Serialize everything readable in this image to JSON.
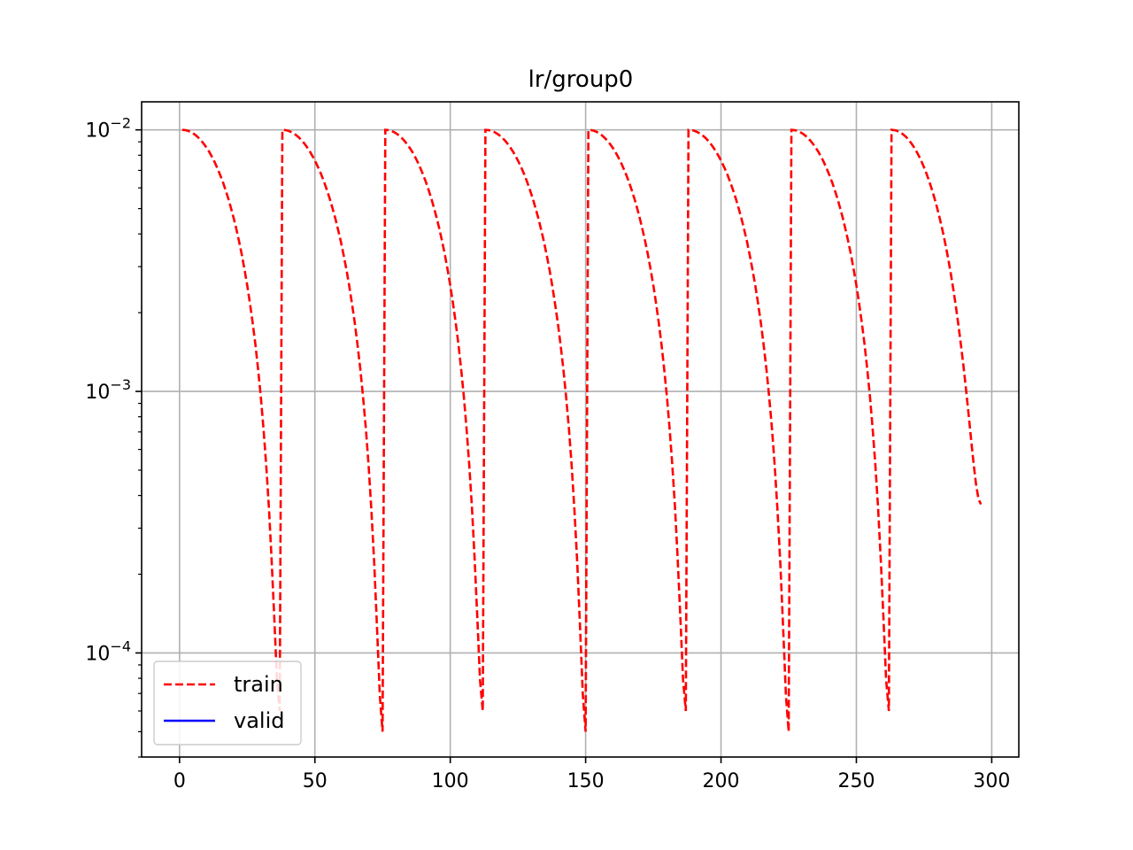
{
  "chart_data": {
    "type": "line",
    "title": "lr/group0",
    "xlabel": "",
    "ylabel": "",
    "yscale": "log",
    "xlim": [
      -14,
      310
    ],
    "ylim": [
      4e-05,
      0.0128
    ],
    "x_ticks": [
      0,
      50,
      100,
      150,
      200,
      250,
      300
    ],
    "x_tick_labels": [
      "0",
      "50",
      "100",
      "150",
      "200",
      "250",
      "300"
    ],
    "y_ticks": [
      0.0001,
      0.001,
      0.01
    ],
    "y_tick_labels": [
      {
        "base": "10",
        "exp": "−4"
      },
      {
        "base": "10",
        "exp": "−3"
      },
      {
        "base": "10",
        "exp": "−2"
      }
    ],
    "grid": true,
    "legend": {
      "placement": "lower-left",
      "entries": [
        "train",
        "valid"
      ]
    },
    "series": [
      {
        "name": "train",
        "color": "#ff0000",
        "style": "dashed",
        "segments": [
          {
            "x_start": 1,
            "x_end": 37,
            "y_start": 0.01,
            "y_end": 6e-05
          },
          {
            "x_start": 38,
            "x_end": 75,
            "y_start": 0.01,
            "y_end": 5e-05
          },
          {
            "x_start": 76,
            "x_end": 112,
            "y_start": 0.01,
            "y_end": 6e-05
          },
          {
            "x_start": 113,
            "x_end": 150,
            "y_start": 0.01,
            "y_end": 5e-05
          },
          {
            "x_start": 151,
            "x_end": 187,
            "y_start": 0.01,
            "y_end": 6e-05
          },
          {
            "x_start": 188,
            "x_end": 225,
            "y_start": 0.01,
            "y_end": 5e-05
          },
          {
            "x_start": 226,
            "x_end": 262,
            "y_start": 0.01,
            "y_end": 6e-05
          },
          {
            "x_start": 263,
            "x_end": 296,
            "y_start": 0.01,
            "y_end": 0.00037
          }
        ]
      },
      {
        "name": "valid",
        "color": "#0000ff",
        "style": "solid",
        "segments": []
      }
    ]
  }
}
